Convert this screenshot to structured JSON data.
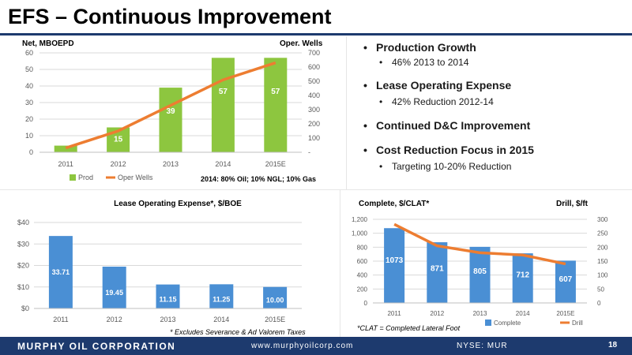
{
  "page_title": "EFS – Continuous Improvement",
  "bullets": [
    {
      "text": "Production Growth",
      "sub": "46% 2013 to 2014"
    },
    {
      "text": "Lease Operating Expense",
      "sub": "42% Reduction 2012-14"
    },
    {
      "text": "Continued D&C Improvement",
      "sub": ""
    },
    {
      "text": "Cost Reduction Focus in 2015",
      "sub": "Targeting 10-20% Reduction"
    }
  ],
  "footer": {
    "company": "MURPHY OIL CORPORATION",
    "url": "www.murphyoilcorp.com",
    "ticker": "NYSE: MUR",
    "page": "18"
  },
  "chart_data": [
    {
      "type": "bar",
      "title": "",
      "ylabel_left": "Net, MBOEPD",
      "ylabel_right": "Oper. Wells",
      "categories": [
        "2011",
        "2012",
        "2013",
        "2014",
        "2015E"
      ],
      "series": [
        {
          "name": "Prod",
          "type": "bar",
          "axis": "left",
          "values": [
            4,
            15,
            39,
            57,
            57
          ],
          "color": "#8dc63f"
        },
        {
          "name": "Oper Wells",
          "type": "line",
          "axis": "right",
          "values": [
            30,
            150,
            330,
            510,
            630
          ],
          "color": "#ed7d31"
        }
      ],
      "ylim_left": [
        0,
        60
      ],
      "yticks_left": [
        "0",
        "10",
        "20",
        "30",
        "40",
        "50",
        "60"
      ],
      "ylim_right": [
        0,
        700
      ],
      "yticks_right": [
        "-",
        "100",
        "200",
        "300",
        "400",
        "500",
        "600",
        "700"
      ],
      "annotation": "2014: 80% Oil; 10% NGL; 10% Gas",
      "grid": true,
      "legend": "bottom"
    },
    {
      "type": "bar",
      "title": "Lease Operating Expense*, $/BOE",
      "categories": [
        "2011",
        "2012",
        "2013",
        "2014",
        "2015E"
      ],
      "values": [
        33.71,
        19.45,
        11.15,
        11.25,
        10.0
      ],
      "data_labels": [
        "33.71",
        "19.45",
        "11.15",
        "11.25",
        "10.00"
      ],
      "color": "#4a8fd4",
      "ylim": [
        0,
        40
      ],
      "yticks": [
        "$0",
        "$10",
        "$20",
        "$30",
        "$40"
      ],
      "footnote": "* Excludes Severance & Ad Valorem Taxes",
      "grid": true
    },
    {
      "type": "bar",
      "title": "Complete, $/CLAT*",
      "ylabel_right": "Drill, $/ft",
      "categories": [
        "2011",
        "2012",
        "2013",
        "2014",
        "2015E"
      ],
      "series": [
        {
          "name": "Complete",
          "type": "bar",
          "axis": "left",
          "values": [
            1073,
            871,
            805,
            712,
            607
          ],
          "color": "#4a8fd4"
        },
        {
          "name": "Drill",
          "type": "line",
          "axis": "right",
          "values": [
            282,
            205,
            180,
            172,
            140
          ],
          "color": "#ed7d31"
        }
      ],
      "ylim_left": [
        0,
        1200
      ],
      "yticks_left": [
        "0",
        "200",
        "400",
        "600",
        "800",
        "1,000",
        "1,200"
      ],
      "ylim_right": [
        0,
        300
      ],
      "yticks_right": [
        "0",
        "50",
        "100",
        "150",
        "200",
        "250",
        "300"
      ],
      "footnote": "*CLAT = Completed Lateral Foot",
      "grid": true,
      "legend": "bottom"
    }
  ]
}
